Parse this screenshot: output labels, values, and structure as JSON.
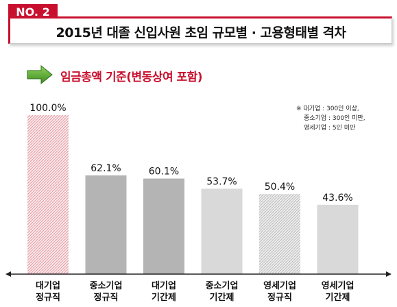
{
  "header": {
    "badge": "NO. 2",
    "title": "2015년 대졸 신입사원 초임 규모별 · 고용형태별 격차"
  },
  "subtitle": "임금총액 기준(변동상여 포함)",
  "note": {
    "lines": [
      "※ 대기업 : 300인 이상,",
      "중소기업 : 300인 미만,",
      "영세기업 : 5인 미만"
    ]
  },
  "colors": {
    "accent": "#c8102e",
    "bar_dark": "#b4b4b4",
    "bar_light": "#d9d9d9",
    "hatch_red": "#e8a0a8",
    "hatch_gray": "#c0c0c0",
    "arrow_green": "#4a9a2a"
  },
  "chart_data": {
    "type": "bar",
    "categories": [
      [
        "대기업",
        "정규직"
      ],
      [
        "중소기업",
        "정규직"
      ],
      [
        "대기업",
        "기간제"
      ],
      [
        "중소기업",
        "기간제"
      ],
      [
        "영세기업",
        "정규직"
      ],
      [
        "영세기업",
        "기간제"
      ]
    ],
    "values": [
      100.0,
      62.1,
      60.1,
      53.7,
      50.4,
      43.6
    ],
    "value_labels": [
      "100.0%",
      "62.1%",
      "60.1%",
      "53.7%",
      "50.4%",
      "43.6%"
    ],
    "bar_styles": [
      "hatch-red",
      "solid-dark",
      "solid-dark",
      "solid-light",
      "hatch-gray",
      "solid-light"
    ],
    "title": "",
    "xlabel": "",
    "ylabel": "",
    "ylim": [
      0,
      100
    ]
  }
}
